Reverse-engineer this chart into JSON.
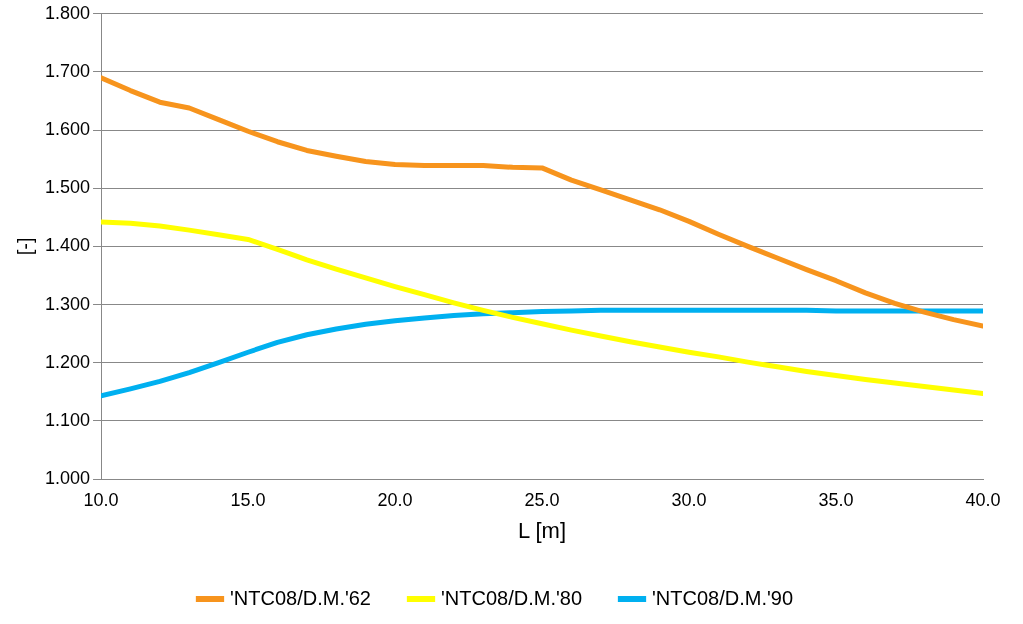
{
  "chart_data": {
    "type": "line",
    "xlabel": "L [m]",
    "ylabel": "[-]",
    "x": [
      10,
      11,
      12,
      13,
      14,
      15,
      16,
      17,
      18,
      19,
      20,
      21,
      22,
      23,
      24,
      25,
      26,
      27,
      28,
      29,
      30,
      31,
      32,
      33,
      34,
      35,
      36,
      37,
      38,
      39,
      40
    ],
    "series": [
      {
        "name": "'NTC08/D.M.'62",
        "color": "#f7941d",
        "values": [
          1.69,
          1.668,
          1.648,
          1.638,
          1.618,
          1.598,
          1.58,
          1.565,
          1.555,
          1.546,
          1.541,
          1.539,
          1.539,
          1.539,
          1.536,
          1.535,
          1.514,
          1.497,
          1.48,
          1.463,
          1.443,
          1.421,
          1.4,
          1.38,
          1.36,
          1.341,
          1.32,
          1.302,
          1.287,
          1.274,
          1.263
        ]
      },
      {
        "name": "'NTC08/D.M.'80",
        "color": "#ffff00",
        "values": [
          1.442,
          1.44,
          1.435,
          1.428,
          1.42,
          1.412,
          1.395,
          1.377,
          1.361,
          1.346,
          1.331,
          1.317,
          1.303,
          1.29,
          1.278,
          1.267,
          1.256,
          1.246,
          1.236,
          1.227,
          1.218,
          1.21,
          1.201,
          1.193,
          1.185,
          1.178,
          1.171,
          1.165,
          1.159,
          1.153,
          1.147
        ]
      },
      {
        "name": "'NTC08/D.M.'90",
        "color": "#00b0f0",
        "values": [
          1.143,
          1.155,
          1.168,
          1.183,
          1.2,
          1.218,
          1.235,
          1.248,
          1.258,
          1.266,
          1.272,
          1.277,
          1.281,
          1.284,
          1.286,
          1.288,
          1.289,
          1.29,
          1.29,
          1.29,
          1.29,
          1.29,
          1.29,
          1.29,
          1.29,
          1.289,
          1.289,
          1.289,
          1.289,
          1.289,
          1.289
        ]
      }
    ],
    "xlim": [
      10,
      40
    ],
    "xticks": [
      {
        "value": 10,
        "label": "10.0"
      },
      {
        "value": 15,
        "label": "15.0"
      },
      {
        "value": 20,
        "label": "20.0"
      },
      {
        "value": 25,
        "label": "25.0"
      },
      {
        "value": 30,
        "label": "30.0"
      },
      {
        "value": 35,
        "label": "35.0"
      },
      {
        "value": 40,
        "label": "40.0"
      }
    ],
    "ylim": [
      1.0,
      1.8
    ],
    "yticks": [
      {
        "value": 1.0,
        "label": "1.000"
      },
      {
        "value": 1.1,
        "label": "1.100"
      },
      {
        "value": 1.2,
        "label": "1.200"
      },
      {
        "value": 1.3,
        "label": "1.300"
      },
      {
        "value": 1.4,
        "label": "1.400"
      },
      {
        "value": 1.5,
        "label": "1.500"
      },
      {
        "value": 1.6,
        "label": "1.600"
      },
      {
        "value": 1.7,
        "label": "1.700"
      },
      {
        "value": 1.8,
        "label": "1.800"
      }
    ],
    "grid": "y",
    "legend": "bottom",
    "marker": "none",
    "line_style": "solid"
  }
}
